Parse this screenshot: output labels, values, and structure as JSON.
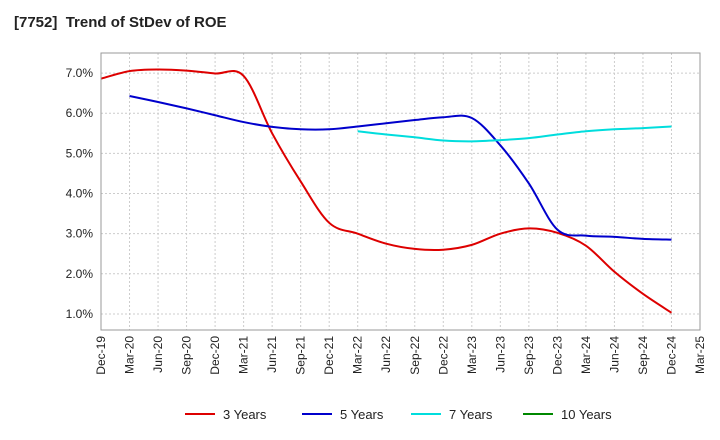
{
  "title": "[7752]  Trend of StDev of ROE",
  "chart_data": {
    "type": "line",
    "title": "[7752]  Trend of StDev of ROE",
    "xlabel": "",
    "ylabel": "",
    "x_ticks": [
      "Dec-19",
      "Mar-20",
      "Jun-20",
      "Sep-20",
      "Dec-20",
      "Mar-21",
      "Jun-21",
      "Sep-21",
      "Dec-21",
      "Mar-22",
      "Jun-22",
      "Sep-22",
      "Dec-22",
      "Mar-23",
      "Jun-23",
      "Sep-23",
      "Dec-23",
      "Mar-24",
      "Jun-24",
      "Sep-24",
      "Dec-24",
      "Mar-25"
    ],
    "y_ticks": [
      "1.0%",
      "2.0%",
      "3.0%",
      "4.0%",
      "5.0%",
      "6.0%",
      "7.0%"
    ],
    "ylim": [
      0.6,
      7.5
    ],
    "grid": true,
    "legend_position": "bottom",
    "series": [
      {
        "name": "3 Years",
        "color": "#dd0000",
        "x": [
          "Dec-19",
          "Mar-20",
          "Jun-20",
          "Sep-20",
          "Dec-20",
          "Mar-21",
          "Jun-21",
          "Sep-21",
          "Dec-21",
          "Mar-22",
          "Jun-22",
          "Sep-22",
          "Dec-22",
          "Mar-23",
          "Jun-23",
          "Sep-23",
          "Dec-23",
          "Mar-24",
          "Jun-24",
          "Sep-24",
          "Dec-24"
        ],
        "values": [
          6.86,
          7.05,
          7.09,
          7.06,
          6.99,
          6.93,
          5.5,
          4.3,
          3.27,
          3.0,
          2.75,
          2.62,
          2.6,
          2.72,
          3.0,
          3.13,
          3.02,
          2.7,
          2.05,
          1.5,
          1.03
        ]
      },
      {
        "name": "5 Years",
        "color": "#0000cc",
        "x": [
          "Mar-20",
          "Jun-20",
          "Sep-20",
          "Dec-20",
          "Mar-21",
          "Jun-21",
          "Sep-21",
          "Dec-21",
          "Mar-22",
          "Jun-22",
          "Sep-22",
          "Dec-22",
          "Mar-23",
          "Jun-23",
          "Sep-23",
          "Dec-23",
          "Mar-24",
          "Jun-24",
          "Sep-24",
          "Dec-24"
        ],
        "values": [
          6.43,
          6.28,
          6.12,
          5.95,
          5.78,
          5.66,
          5.6,
          5.6,
          5.67,
          5.75,
          5.83,
          5.9,
          5.88,
          5.2,
          4.25,
          3.1,
          2.95,
          2.92,
          2.87,
          2.85
        ]
      },
      {
        "name": "7 Years",
        "color": "#00dddd",
        "x": [
          "Mar-22",
          "Jun-22",
          "Sep-22",
          "Dec-22",
          "Mar-23",
          "Jun-23",
          "Sep-23",
          "Dec-23",
          "Mar-24",
          "Jun-24",
          "Sep-24",
          "Dec-24"
        ],
        "values": [
          5.55,
          5.47,
          5.4,
          5.32,
          5.3,
          5.33,
          5.38,
          5.47,
          5.55,
          5.6,
          5.63,
          5.67
        ]
      },
      {
        "name": "10 Years",
        "color": "#008800",
        "x": [],
        "values": []
      }
    ]
  }
}
